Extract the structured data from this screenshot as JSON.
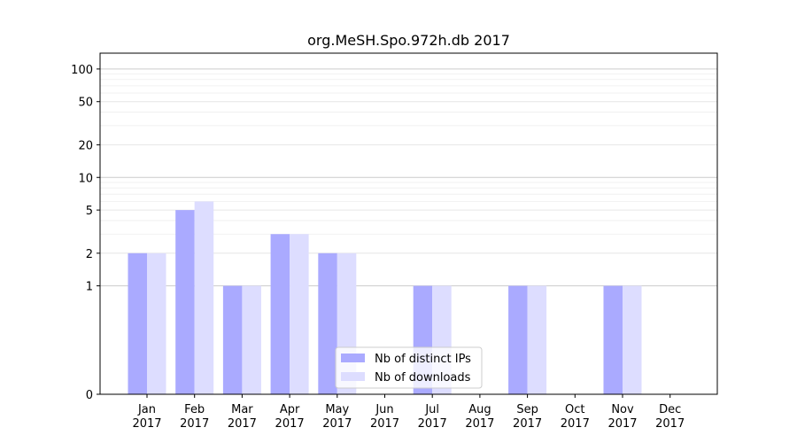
{
  "chart_data": {
    "type": "bar",
    "title": "org.MeSH.Spo.972h.db 2017",
    "xlabel": "",
    "ylabel": "",
    "scale": "symlog",
    "ylim": [
      0,
      140
    ],
    "yticks": [
      0,
      1,
      2,
      5,
      10,
      20,
      50,
      100
    ],
    "grid": true,
    "legend_position": "bottom-center",
    "categories": [
      "Jan\n2017",
      "Feb\n2017",
      "Mar\n2017",
      "Apr\n2017",
      "May\n2017",
      "Jun\n2017",
      "Jul\n2017",
      "Aug\n2017",
      "Sep\n2017",
      "Oct\n2017",
      "Nov\n2017",
      "Dec\n2017"
    ],
    "category_labels": [
      {
        "month": "Jan",
        "year": "2017"
      },
      {
        "month": "Feb",
        "year": "2017"
      },
      {
        "month": "Mar",
        "year": "2017"
      },
      {
        "month": "Apr",
        "year": "2017"
      },
      {
        "month": "May",
        "year": "2017"
      },
      {
        "month": "Jun",
        "year": "2017"
      },
      {
        "month": "Jul",
        "year": "2017"
      },
      {
        "month": "Aug",
        "year": "2017"
      },
      {
        "month": "Sep",
        "year": "2017"
      },
      {
        "month": "Oct",
        "year": "2017"
      },
      {
        "month": "Nov",
        "year": "2017"
      },
      {
        "month": "Dec",
        "year": "2017"
      }
    ],
    "series": [
      {
        "name": "Nb of distinct IPs",
        "color": "#aaaaff",
        "values": [
          2,
          5,
          1,
          3,
          2,
          0,
          1,
          0,
          1,
          0,
          1,
          0
        ]
      },
      {
        "name": "Nb of downloads",
        "color": "#ddddff",
        "values": [
          2,
          6,
          1,
          3,
          2,
          0,
          1,
          0,
          1,
          0,
          1,
          0
        ]
      }
    ]
  }
}
